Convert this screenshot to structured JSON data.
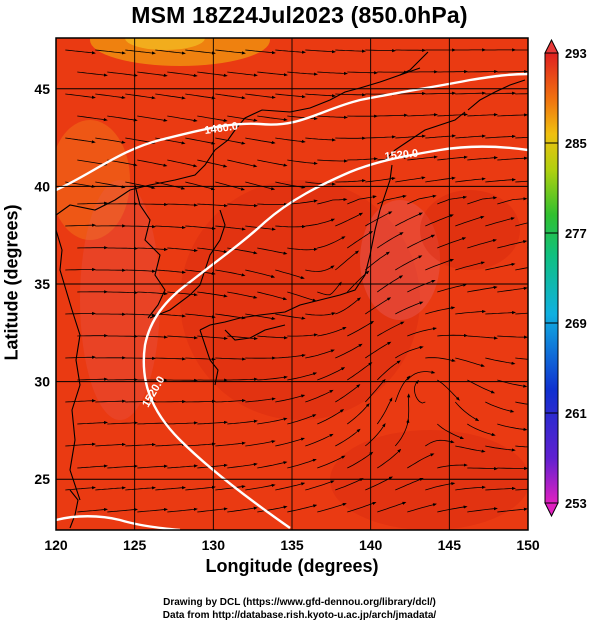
{
  "title": "MSM 18Z24Jul2023 (850.0hPa)",
  "axes": {
    "xlabel": "Longitude (degrees)",
    "ylabel": "Latitude  (degrees)",
    "xticks": [
      "120",
      "125",
      "130",
      "135",
      "140",
      "145",
      "150"
    ],
    "yticks": [
      "25",
      "30",
      "35",
      "40",
      "45"
    ],
    "xlim": [
      120,
      150
    ],
    "ylim": [
      22.4,
      47.6
    ]
  },
  "colorbar": {
    "ticks": [
      "293",
      "285",
      "277",
      "269",
      "261",
      "253"
    ],
    "range": [
      253,
      293
    ]
  },
  "contours": [
    {
      "label": "1460.0"
    },
    {
      "label": "1520.0"
    },
    {
      "label": "1520.0"
    }
  ],
  "credits": {
    "line1": "Drawing by DCL (https://www.gfd-dennou.org/library/dcl/)",
    "line2": "Data from http://database.rish.kyoto-u.ac.jp/arch/jmadata/"
  },
  "colors": {
    "field_main": "#ea3a12",
    "field_warm": "#d42810",
    "field_cool": "#f08010",
    "field_pink": "#e86060",
    "contour": "#ffffff",
    "coast": "#000000"
  }
}
